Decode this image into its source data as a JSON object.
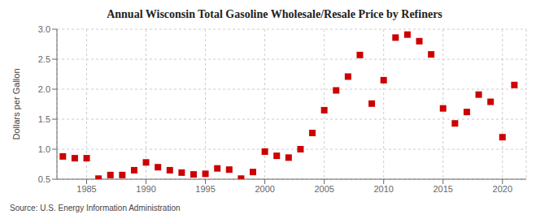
{
  "chart_data": {
    "type": "scatter",
    "title": "Annual Wisconsin Total Gasoline Wholesale/Resale Price by Refiners",
    "y_label": "Dollars per Gallon",
    "annotations": [
      "Source: U.S. Energy Information Administration"
    ],
    "x": [
      1983,
      1984,
      1985,
      1986,
      1987,
      1988,
      1989,
      1990,
      1991,
      1992,
      1993,
      1994,
      1995,
      1996,
      1997,
      1998,
      1999,
      2000,
      2001,
      2002,
      2003,
      2004,
      2005,
      2006,
      2007,
      2008,
      2009,
      2010,
      2011,
      2012,
      2013,
      2014,
      2015,
      2016,
      2017,
      2018,
      2019,
      2020,
      2021
    ],
    "values": [
      0.88,
      0.85,
      0.85,
      0.51,
      0.57,
      0.57,
      0.65,
      0.78,
      0.7,
      0.65,
      0.61,
      0.58,
      0.59,
      0.68,
      0.66,
      0.51,
      0.62,
      0.96,
      0.89,
      0.86,
      1.0,
      1.27,
      1.65,
      1.98,
      2.21,
      2.57,
      1.76,
      2.15,
      2.86,
      2.91,
      2.8,
      2.58,
      1.68,
      1.43,
      1.62,
      1.91,
      1.79,
      1.2,
      2.07
    ],
    "color": "#cc0000",
    "marker": "square",
    "xlim": [
      1982.5,
      2022
    ],
    "xticks": [
      1985,
      1990,
      1995,
      2000,
      2005,
      2010,
      2015,
      2020
    ],
    "ylim": [
      0.5,
      3.0
    ],
    "yticks": [
      {
        "value": 0.5,
        "label": "0.5"
      },
      {
        "value": 1.0,
        "label": "1.0"
      },
      {
        "value": 1.5,
        "label": "1.5"
      },
      {
        "value": 2.0,
        "label": "2.0"
      },
      {
        "value": 2.5,
        "label": "2.5"
      },
      {
        "value": 3.0,
        "label": "3.0"
      }
    ],
    "grid": true
  }
}
